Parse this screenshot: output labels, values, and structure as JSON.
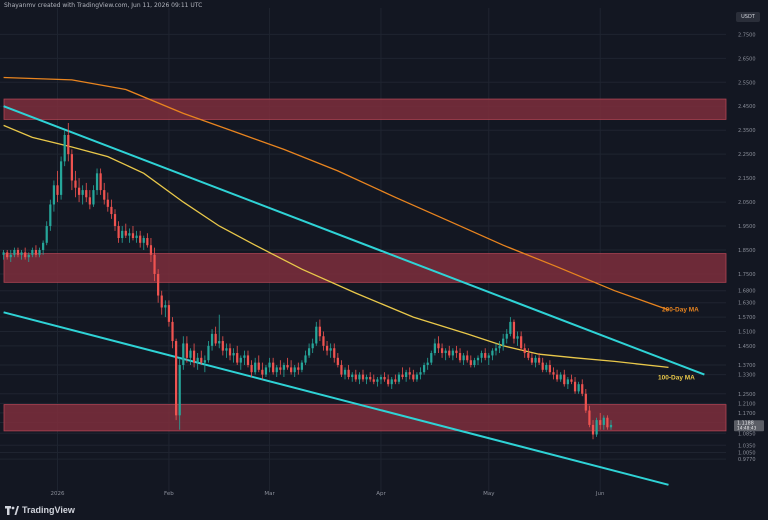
{
  "header": {
    "attribution": "Shayanmv created with TradingView.com, Jun 11, 2026 09:11 UTC"
  },
  "brand": {
    "name": "TradingView",
    "logo_icon": "tradingview-logo-icon"
  },
  "axis_unit": "USDT",
  "colors": {
    "background": "#131722",
    "zone": "#7e2e3c",
    "channel": "#2fd3d6",
    "ma100": "#e9c84a",
    "ma200": "#e8841f",
    "up": "#26a69a",
    "down": "#ef5350",
    "grid": "#1f2430",
    "axis_text": "#8b8f9a",
    "price_tag": "#5b5e66"
  },
  "chart_data": {
    "type": "candlestick",
    "xlabel": "",
    "ylabel": "",
    "ylim": [
      0.84,
      2.86
    ],
    "x_ticks": [
      "2026",
      "Feb",
      "Mar",
      "Apr",
      "May",
      "Jun"
    ],
    "y_ticks": [
      "2.7500",
      "2.6500",
      "2.5500",
      "2.4500",
      "2.3500",
      "2.2500",
      "2.1500",
      "2.0500",
      "1.9500",
      "1.8500",
      "1.7500",
      "1.6800",
      "1.6300",
      "1.5700",
      "1.5100",
      "1.4500",
      "1.3700",
      "1.3300",
      "1.2500",
      "1.2100",
      "1.1700",
      "1.1300",
      "1.0850",
      "1.0350",
      "1.0050",
      "0.9770"
    ],
    "current_price": {
      "price": "1.1188",
      "countdown": "14:48:43"
    },
    "zones": [
      {
        "from": 2.395,
        "to": 2.48
      },
      {
        "from": 1.715,
        "to": 1.835
      },
      {
        "from": 1.095,
        "to": 1.205
      }
    ],
    "lines": [
      {
        "name": "",
        "points": [
          [
            "2025-12-17",
            2.45
          ],
          [
            "2026-06-30",
            1.33
          ]
        ]
      },
      {
        "name": "",
        "points": [
          [
            "2025-12-17",
            1.59
          ],
          [
            "2026-06-20",
            0.87
          ]
        ]
      },
      {
        "name": "200-Day MA",
        "points": [
          [
            "2025-12-17",
            2.57
          ],
          [
            "2026-01-05",
            2.56
          ],
          [
            "2026-01-20",
            2.52
          ],
          [
            "2026-02-05",
            2.42
          ],
          [
            "2026-02-20",
            2.34
          ],
          [
            "2026-03-05",
            2.27
          ],
          [
            "2026-03-20",
            2.18
          ],
          [
            "2026-04-05",
            2.07
          ],
          [
            "2026-04-20",
            1.97
          ],
          [
            "2026-05-05",
            1.87
          ],
          [
            "2026-05-20",
            1.78
          ],
          [
            "2026-06-05",
            1.68
          ],
          [
            "2026-06-20",
            1.6
          ]
        ]
      },
      {
        "name": "100-Day MA",
        "points": [
          [
            "2025-12-17",
            2.37
          ],
          [
            "2025-12-25",
            2.32
          ],
          [
            "2026-01-05",
            2.28
          ],
          [
            "2026-01-15",
            2.24
          ],
          [
            "2026-01-25",
            2.17
          ],
          [
            "2026-02-05",
            2.05
          ],
          [
            "2026-02-15",
            1.95
          ],
          [
            "2026-02-25",
            1.87
          ],
          [
            "2026-03-10",
            1.77
          ],
          [
            "2026-03-25",
            1.67
          ],
          [
            "2026-04-10",
            1.57
          ],
          [
            "2026-04-25",
            1.5
          ],
          [
            "2026-05-05",
            1.45
          ],
          [
            "2026-05-15",
            1.415
          ],
          [
            "2026-05-25",
            1.4
          ],
          [
            "2026-06-05",
            1.385
          ],
          [
            "2026-06-20",
            1.36
          ]
        ]
      }
    ],
    "candles_ohlc": [
      [
        "2025-12-17",
        1.83,
        1.85,
        1.81,
        1.84
      ],
      [
        "2025-12-18",
        1.84,
        1.85,
        1.81,
        1.82
      ],
      [
        "2025-12-19",
        1.82,
        1.85,
        1.8,
        1.83
      ],
      [
        "2025-12-20",
        1.83,
        1.86,
        1.82,
        1.85
      ],
      [
        "2025-12-21",
        1.85,
        1.86,
        1.82,
        1.83
      ],
      [
        "2025-12-22",
        1.83,
        1.85,
        1.81,
        1.84
      ],
      [
        "2025-12-23",
        1.84,
        1.86,
        1.81,
        1.82
      ],
      [
        "2025-12-24",
        1.82,
        1.84,
        1.8,
        1.83
      ],
      [
        "2025-12-25",
        1.83,
        1.86,
        1.82,
        1.85
      ],
      [
        "2025-12-26",
        1.85,
        1.87,
        1.82,
        1.83
      ],
      [
        "2025-12-27",
        1.83,
        1.86,
        1.82,
        1.85
      ],
      [
        "2025-12-28",
        1.85,
        1.89,
        1.83,
        1.88
      ],
      [
        "2025-12-29",
        1.88,
        1.97,
        1.87,
        1.95
      ],
      [
        "2025-12-30",
        1.95,
        2.06,
        1.93,
        2.04
      ],
      [
        "2025-12-31",
        2.04,
        2.14,
        2.01,
        2.12
      ],
      [
        "2026-01-01",
        2.12,
        2.18,
        2.05,
        2.08
      ],
      [
        "2026-01-02",
        2.08,
        2.24,
        2.06,
        2.22
      ],
      [
        "2026-01-03",
        2.22,
        2.35,
        2.2,
        2.33
      ],
      [
        "2026-01-04",
        2.33,
        2.38,
        2.22,
        2.25
      ],
      [
        "2026-01-05",
        2.25,
        2.27,
        2.1,
        2.14
      ],
      [
        "2026-01-06",
        2.14,
        2.18,
        2.07,
        2.11
      ],
      [
        "2026-01-07",
        2.11,
        2.15,
        2.05,
        2.08
      ],
      [
        "2026-01-08",
        2.08,
        2.12,
        2.04,
        2.1
      ],
      [
        "2026-01-09",
        2.1,
        2.13,
        2.05,
        2.07
      ],
      [
        "2026-01-10",
        2.07,
        2.1,
        2.02,
        2.04
      ],
      [
        "2026-01-11",
        2.04,
        2.12,
        2.03,
        2.1
      ],
      [
        "2026-01-12",
        2.1,
        2.19,
        2.08,
        2.17
      ],
      [
        "2026-01-13",
        2.17,
        2.19,
        2.08,
        2.1
      ],
      [
        "2026-01-14",
        2.1,
        2.13,
        2.04,
        2.06
      ],
      [
        "2026-01-15",
        2.06,
        2.09,
        2.01,
        2.03
      ],
      [
        "2026-01-16",
        2.03,
        2.06,
        1.98,
        2.0
      ],
      [
        "2026-01-17",
        2.0,
        2.02,
        1.93,
        1.95
      ],
      [
        "2026-01-18",
        1.95,
        1.97,
        1.88,
        1.9
      ],
      [
        "2026-01-19",
        1.9,
        1.95,
        1.88,
        1.93
      ],
      [
        "2026-01-20",
        1.93,
        1.96,
        1.9,
        1.91
      ],
      [
        "2026-01-21",
        1.91,
        1.94,
        1.88,
        1.92
      ],
      [
        "2026-01-22",
        1.92,
        1.95,
        1.89,
        1.9
      ],
      [
        "2026-01-23",
        1.9,
        1.93,
        1.88,
        1.91
      ],
      [
        "2026-01-24",
        1.91,
        1.93,
        1.86,
        1.88
      ],
      [
        "2026-01-25",
        1.88,
        1.91,
        1.85,
        1.9
      ],
      [
        "2026-01-26",
        1.9,
        1.92,
        1.86,
        1.87
      ],
      [
        "2026-01-27",
        1.87,
        1.9,
        1.8,
        1.83
      ],
      [
        "2026-01-28",
        1.83,
        1.86,
        1.72,
        1.75
      ],
      [
        "2026-01-29",
        1.75,
        1.77,
        1.63,
        1.66
      ],
      [
        "2026-01-30",
        1.66,
        1.68,
        1.58,
        1.61
      ],
      [
        "2026-01-31",
        1.61,
        1.64,
        1.57,
        1.62
      ],
      [
        "2026-02-01",
        1.62,
        1.64,
        1.53,
        1.55
      ],
      [
        "2026-02-02",
        1.55,
        1.57,
        1.44,
        1.47
      ],
      [
        "2026-02-03",
        1.47,
        1.48,
        1.14,
        1.16
      ],
      [
        "2026-02-04",
        1.16,
        1.4,
        1.1,
        1.37
      ],
      [
        "2026-02-05",
        1.37,
        1.49,
        1.35,
        1.46
      ],
      [
        "2026-02-06",
        1.46,
        1.49,
        1.38,
        1.4
      ],
      [
        "2026-02-07",
        1.4,
        1.44,
        1.37,
        1.43
      ],
      [
        "2026-02-08",
        1.43,
        1.46,
        1.36,
        1.38
      ],
      [
        "2026-02-09",
        1.38,
        1.42,
        1.35,
        1.4
      ],
      [
        "2026-02-10",
        1.4,
        1.43,
        1.37,
        1.38
      ],
      [
        "2026-02-11",
        1.38,
        1.41,
        1.34,
        1.39
      ],
      [
        "2026-02-12",
        1.39,
        1.47,
        1.38,
        1.45
      ],
      [
        "2026-02-13",
        1.45,
        1.52,
        1.43,
        1.5
      ],
      [
        "2026-02-14",
        1.5,
        1.53,
        1.45,
        1.46
      ],
      [
        "2026-02-15",
        1.46,
        1.58,
        1.44,
        1.47
      ],
      [
        "2026-02-16",
        1.47,
        1.49,
        1.41,
        1.43
      ],
      [
        "2026-02-17",
        1.43,
        1.46,
        1.4,
        1.44
      ],
      [
        "2026-02-18",
        1.44,
        1.46,
        1.39,
        1.41
      ],
      [
        "2026-02-19",
        1.41,
        1.44,
        1.38,
        1.42
      ],
      [
        "2026-02-20",
        1.42,
        1.45,
        1.37,
        1.38
      ],
      [
        "2026-02-21",
        1.38,
        1.41,
        1.35,
        1.4
      ],
      [
        "2026-02-22",
        1.4,
        1.43,
        1.37,
        1.41
      ],
      [
        "2026-02-23",
        1.41,
        1.43,
        1.36,
        1.37
      ],
      [
        "2026-02-24",
        1.37,
        1.39,
        1.32,
        1.34
      ],
      [
        "2026-02-25",
        1.34,
        1.4,
        1.33,
        1.38
      ],
      [
        "2026-02-26",
        1.38,
        1.41,
        1.34,
        1.35
      ],
      [
        "2026-02-27",
        1.35,
        1.38,
        1.31,
        1.33
      ],
      [
        "2026-02-28",
        1.33,
        1.37,
        1.32,
        1.36
      ],
      [
        "2026-03-01",
        1.36,
        1.4,
        1.34,
        1.38
      ],
      [
        "2026-03-02",
        1.38,
        1.4,
        1.33,
        1.34
      ],
      [
        "2026-03-03",
        1.34,
        1.37,
        1.32,
        1.36
      ],
      [
        "2026-03-04",
        1.36,
        1.39,
        1.33,
        1.35
      ],
      [
        "2026-03-05",
        1.35,
        1.38,
        1.32,
        1.37
      ],
      [
        "2026-03-06",
        1.37,
        1.4,
        1.35,
        1.36
      ],
      [
        "2026-03-07",
        1.36,
        1.39,
        1.33,
        1.34
      ],
      [
        "2026-03-08",
        1.34,
        1.37,
        1.32,
        1.36
      ],
      [
        "2026-03-09",
        1.36,
        1.38,
        1.33,
        1.35
      ],
      [
        "2026-03-10",
        1.35,
        1.39,
        1.34,
        1.38
      ],
      [
        "2026-03-11",
        1.38,
        1.43,
        1.37,
        1.41
      ],
      [
        "2026-03-12",
        1.41,
        1.46,
        1.4,
        1.44
      ],
      [
        "2026-03-13",
        1.44,
        1.48,
        1.42,
        1.46
      ],
      [
        "2026-03-14",
        1.46,
        1.55,
        1.45,
        1.53
      ],
      [
        "2026-03-15",
        1.53,
        1.56,
        1.47,
        1.49
      ],
      [
        "2026-03-16",
        1.49,
        1.51,
        1.43,
        1.45
      ],
      [
        "2026-03-17",
        1.45,
        1.47,
        1.41,
        1.43
      ],
      [
        "2026-03-18",
        1.43,
        1.46,
        1.4,
        1.44
      ],
      [
        "2026-03-19",
        1.44,
        1.46,
        1.38,
        1.4
      ],
      [
        "2026-03-20",
        1.4,
        1.42,
        1.36,
        1.37
      ],
      [
        "2026-03-21",
        1.37,
        1.39,
        1.32,
        1.33
      ],
      [
        "2026-03-22",
        1.33,
        1.36,
        1.31,
        1.35
      ],
      [
        "2026-03-23",
        1.35,
        1.37,
        1.31,
        1.32
      ],
      [
        "2026-03-24",
        1.32,
        1.34,
        1.3,
        1.33
      ],
      [
        "2026-03-25",
        1.33,
        1.35,
        1.3,
        1.31
      ],
      [
        "2026-03-26",
        1.31,
        1.34,
        1.29,
        1.33
      ],
      [
        "2026-03-27",
        1.33,
        1.35,
        1.3,
        1.31
      ],
      [
        "2026-03-28",
        1.31,
        1.33,
        1.29,
        1.32
      ],
      [
        "2026-03-29",
        1.32,
        1.34,
        1.3,
        1.31
      ],
      [
        "2026-03-30",
        1.31,
        1.33,
        1.29,
        1.3
      ],
      [
        "2026-03-31",
        1.3,
        1.32,
        1.28,
        1.31
      ],
      [
        "2026-04-01",
        1.31,
        1.33,
        1.29,
        1.32
      ],
      [
        "2026-04-02",
        1.32,
        1.34,
        1.3,
        1.31
      ],
      [
        "2026-04-03",
        1.31,
        1.33,
        1.28,
        1.29
      ],
      [
        "2026-04-04",
        1.29,
        1.32,
        1.27,
        1.31
      ],
      [
        "2026-04-05",
        1.31,
        1.33,
        1.29,
        1.3
      ],
      [
        "2026-04-06",
        1.3,
        1.34,
        1.29,
        1.33
      ],
      [
        "2026-04-07",
        1.33,
        1.36,
        1.31,
        1.32
      ],
      [
        "2026-04-08",
        1.32,
        1.35,
        1.3,
        1.34
      ],
      [
        "2026-04-09",
        1.34,
        1.36,
        1.31,
        1.33
      ],
      [
        "2026-04-10",
        1.33,
        1.35,
        1.3,
        1.31
      ],
      [
        "2026-04-11",
        1.31,
        1.34,
        1.3,
        1.33
      ],
      [
        "2026-04-12",
        1.33,
        1.36,
        1.31,
        1.34
      ],
      [
        "2026-04-13",
        1.34,
        1.38,
        1.33,
        1.37
      ],
      [
        "2026-04-14",
        1.37,
        1.4,
        1.35,
        1.38
      ],
      [
        "2026-04-15",
        1.38,
        1.43,
        1.37,
        1.42
      ],
      [
        "2026-04-16",
        1.42,
        1.48,
        1.41,
        1.46
      ],
      [
        "2026-04-17",
        1.46,
        1.49,
        1.42,
        1.44
      ],
      [
        "2026-04-18",
        1.44,
        1.46,
        1.4,
        1.42
      ],
      [
        "2026-04-19",
        1.42,
        1.44,
        1.39,
        1.43
      ],
      [
        "2026-04-20",
        1.43,
        1.45,
        1.4,
        1.41
      ],
      [
        "2026-04-21",
        1.41,
        1.44,
        1.39,
        1.43
      ],
      [
        "2026-04-22",
        1.43,
        1.45,
        1.4,
        1.42
      ],
      [
        "2026-04-23",
        1.42,
        1.44,
        1.38,
        1.39
      ],
      [
        "2026-04-24",
        1.39,
        1.42,
        1.37,
        1.41
      ],
      [
        "2026-04-25",
        1.41,
        1.43,
        1.38,
        1.39
      ],
      [
        "2026-04-26",
        1.39,
        1.41,
        1.36,
        1.37
      ],
      [
        "2026-04-27",
        1.37,
        1.4,
        1.36,
        1.39
      ],
      [
        "2026-04-28",
        1.39,
        1.41,
        1.37,
        1.4
      ],
      [
        "2026-04-29",
        1.4,
        1.43,
        1.38,
        1.42
      ],
      [
        "2026-04-30",
        1.42,
        1.44,
        1.39,
        1.4
      ],
      [
        "2026-05-01",
        1.4,
        1.42,
        1.37,
        1.41
      ],
      [
        "2026-05-02",
        1.41,
        1.44,
        1.39,
        1.43
      ],
      [
        "2026-05-03",
        1.43,
        1.46,
        1.41,
        1.44
      ],
      [
        "2026-05-04",
        1.44,
        1.47,
        1.42,
        1.45
      ],
      [
        "2026-05-05",
        1.45,
        1.5,
        1.43,
        1.48
      ],
      [
        "2026-05-06",
        1.48,
        1.52,
        1.46,
        1.5
      ],
      [
        "2026-05-07",
        1.5,
        1.57,
        1.49,
        1.55
      ],
      [
        "2026-05-08",
        1.55,
        1.56,
        1.46,
        1.48
      ],
      [
        "2026-05-09",
        1.48,
        1.51,
        1.45,
        1.49
      ],
      [
        "2026-05-10",
        1.49,
        1.51,
        1.43,
        1.44
      ],
      [
        "2026-05-11",
        1.44,
        1.46,
        1.4,
        1.42
      ],
      [
        "2026-05-12",
        1.42,
        1.44,
        1.39,
        1.4
      ],
      [
        "2026-05-13",
        1.4,
        1.42,
        1.37,
        1.38
      ],
      [
        "2026-05-14",
        1.38,
        1.41,
        1.36,
        1.4
      ],
      [
        "2026-05-15",
        1.4,
        1.42,
        1.37,
        1.38
      ],
      [
        "2026-05-16",
        1.38,
        1.4,
        1.34,
        1.35
      ],
      [
        "2026-05-17",
        1.35,
        1.38,
        1.34,
        1.37
      ],
      [
        "2026-05-18",
        1.37,
        1.39,
        1.33,
        1.34
      ],
      [
        "2026-05-19",
        1.34,
        1.36,
        1.31,
        1.33
      ],
      [
        "2026-05-20",
        1.33,
        1.35,
        1.3,
        1.31
      ],
      [
        "2026-05-21",
        1.31,
        1.34,
        1.3,
        1.33
      ],
      [
        "2026-05-22",
        1.33,
        1.35,
        1.28,
        1.29
      ],
      [
        "2026-05-23",
        1.29,
        1.32,
        1.27,
        1.31
      ],
      [
        "2026-05-24",
        1.31,
        1.33,
        1.29,
        1.3
      ],
      [
        "2026-05-25",
        1.3,
        1.32,
        1.25,
        1.26
      ],
      [
        "2026-05-26",
        1.26,
        1.3,
        1.25,
        1.29
      ],
      [
        "2026-05-27",
        1.29,
        1.31,
        1.24,
        1.25
      ],
      [
        "2026-05-28",
        1.25,
        1.27,
        1.17,
        1.18
      ],
      [
        "2026-05-29",
        1.18,
        1.2,
        1.11,
        1.12
      ],
      [
        "2026-05-30",
        1.12,
        1.14,
        1.06,
        1.08
      ],
      [
        "2026-05-31",
        1.08,
        1.15,
        1.07,
        1.14
      ],
      [
        "2026-06-01",
        1.14,
        1.17,
        1.1,
        1.12
      ],
      [
        "2026-06-02",
        1.12,
        1.16,
        1.1,
        1.15
      ],
      [
        "2026-06-03",
        1.15,
        1.16,
        1.1,
        1.11
      ],
      [
        "2026-06-04",
        1.11,
        1.14,
        1.1,
        1.12
      ]
    ]
  }
}
